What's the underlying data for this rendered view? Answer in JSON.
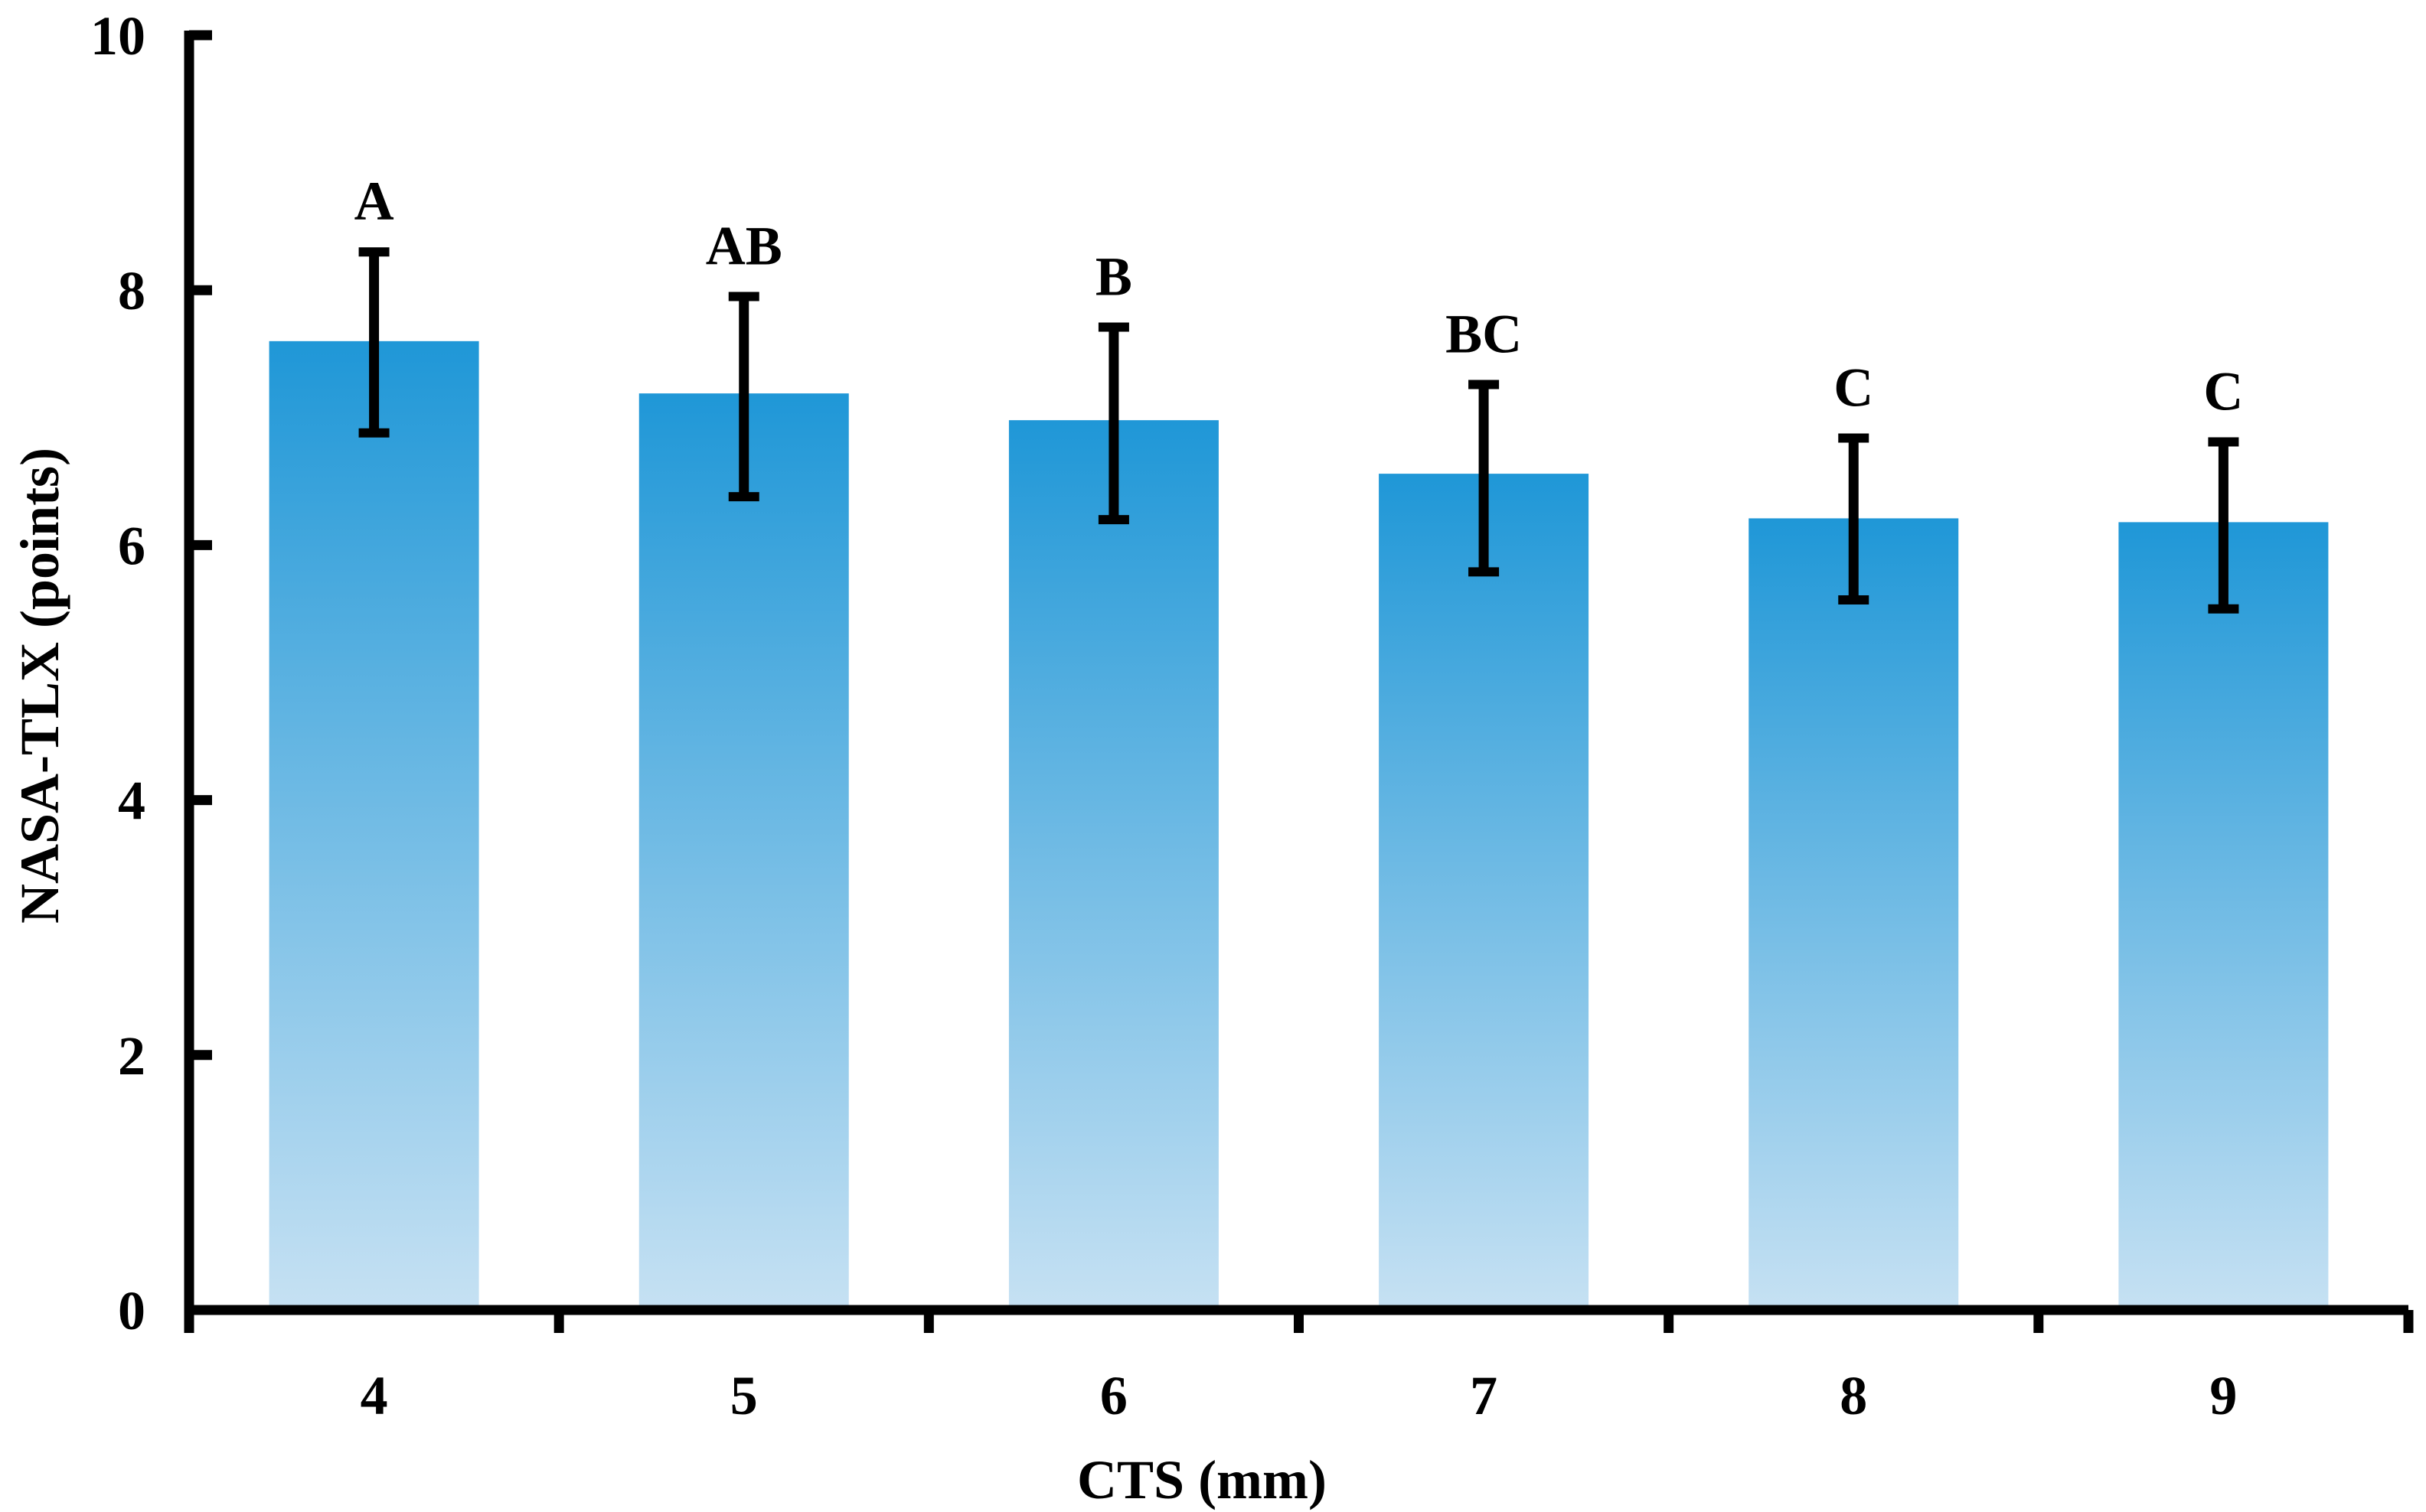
{
  "chart_data": {
    "type": "bar",
    "title": "",
    "xlabel": "CTS (mm)",
    "ylabel": "NASA-TLX (points)",
    "categories": [
      "4",
      "5",
      "6",
      "7",
      "8",
      "9"
    ],
    "values": [
      7.6,
      7.19,
      6.98,
      6.56,
      6.21,
      6.18
    ],
    "error_low": [
      6.88,
      6.38,
      6.2,
      5.79,
      5.57,
      5.5
    ],
    "error_high": [
      8.3,
      7.95,
      7.71,
      7.26,
      6.84,
      6.81
    ],
    "group_labels": [
      "A",
      "AB",
      "B",
      "BC",
      "C",
      "C"
    ],
    "ylim": [
      0,
      10
    ],
    "yticks": [
      0,
      2,
      4,
      6,
      8,
      10
    ],
    "grid": false,
    "bar_color_top": "#1f97d7",
    "bar_color_bottom": "#c6e1f3"
  }
}
